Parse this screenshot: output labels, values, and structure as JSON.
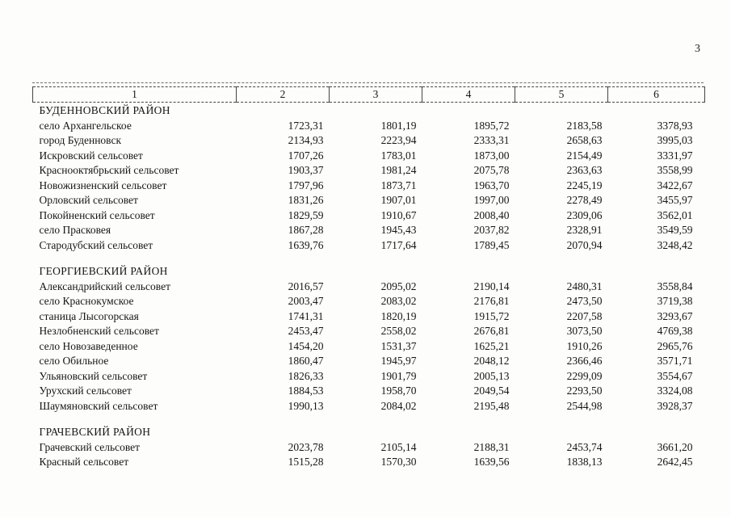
{
  "page": {
    "number": "3"
  },
  "table": {
    "header_cols": [
      "1",
      "2",
      "3",
      "4",
      "5",
      "6"
    ],
    "sections": [
      {
        "title": "БУДЕННОВСКИЙ РАЙОН",
        "rows": [
          {
            "name": "село Архангельское",
            "values": [
              "1723,31",
              "1801,19",
              "1895,72",
              "2183,58",
              "3378,93"
            ]
          },
          {
            "name": "город Буденновск",
            "values": [
              "2134,93",
              "2223,94",
              "2333,31",
              "2658,63",
              "3995,03"
            ]
          },
          {
            "name": "Искровский сельсовет",
            "values": [
              "1707,26",
              "1783,01",
              "1873,00",
              "2154,49",
              "3331,97"
            ]
          },
          {
            "name": "Краснооктябрьский сельсовет",
            "values": [
              "1903,37",
              "1981,24",
              "2075,78",
              "2363,63",
              "3558,99"
            ]
          },
          {
            "name": "Новожизненский сельсовет",
            "values": [
              "1797,96",
              "1873,71",
              "1963,70",
              "2245,19",
              "3422,67"
            ]
          },
          {
            "name": "Орловский сельсовет",
            "values": [
              "1831,26",
              "1907,01",
              "1997,00",
              "2278,49",
              "3455,97"
            ]
          },
          {
            "name": "Покойненский сельсовет",
            "values": [
              "1829,59",
              "1910,67",
              "2008,40",
              "2309,06",
              "3562,01"
            ]
          },
          {
            "name": "село Прасковея",
            "values": [
              "1867,28",
              "1945,43",
              "2037,82",
              "2328,91",
              "3549,59"
            ]
          },
          {
            "name": "Стародубский сельсовет",
            "values": [
              "1639,76",
              "1717,64",
              "1789,45",
              "2070,94",
              "3248,42"
            ]
          }
        ]
      },
      {
        "title": "ГЕОРГИЕВСКИЙ РАЙОН",
        "rows": [
          {
            "name": "Александрийский сельсовет",
            "values": [
              "2016,57",
              "2095,02",
              "2190,14",
              "2480,31",
              "3558,84"
            ]
          },
          {
            "name": "село Краснокумское",
            "values": [
              "2003,47",
              "2083,02",
              "2176,81",
              "2473,50",
              "3719,38"
            ]
          },
          {
            "name": "станица Лысогорская",
            "values": [
              "1741,31",
              "1820,19",
              "1915,72",
              "2207,58",
              "3293,67"
            ]
          },
          {
            "name": "Незлобненский сельсовет",
            "values": [
              "2453,47",
              "2558,02",
              "2676,81",
              "3073,50",
              "4769,38"
            ]
          },
          {
            "name": "село Новозаведенное",
            "values": [
              "1454,20",
              "1531,37",
              "1625,21",
              "1910,26",
              "2965,76"
            ]
          },
          {
            "name": "село Обильное",
            "values": [
              "1860,47",
              "1945,97",
              "2048,12",
              "2366,46",
              "3571,71"
            ]
          },
          {
            "name": "Ульяновский сельсовет",
            "values": [
              "1826,33",
              "1901,79",
              "2005,13",
              "2299,09",
              "3554,67"
            ]
          },
          {
            "name": "Урухский сельсовет",
            "values": [
              "1884,53",
              "1958,70",
              "2049,54",
              "2293,50",
              "3324,08"
            ]
          },
          {
            "name": "Шаумяновский сельсовет",
            "values": [
              "1990,13",
              "2084,02",
              "2195,48",
              "2544,98",
              "3928,37"
            ]
          }
        ]
      },
      {
        "title": "ГРАЧЕВСКИЙ РАЙОН",
        "rows": [
          {
            "name": "Грачевский сельсовет",
            "values": [
              "2023,78",
              "2105,14",
              "2188,31",
              "2453,74",
              "3661,20"
            ]
          },
          {
            "name": "Красный сельсовет",
            "values": [
              "1515,28",
              "1570,30",
              "1639,56",
              "1838,13",
              "2642,45"
            ]
          }
        ]
      }
    ]
  }
}
